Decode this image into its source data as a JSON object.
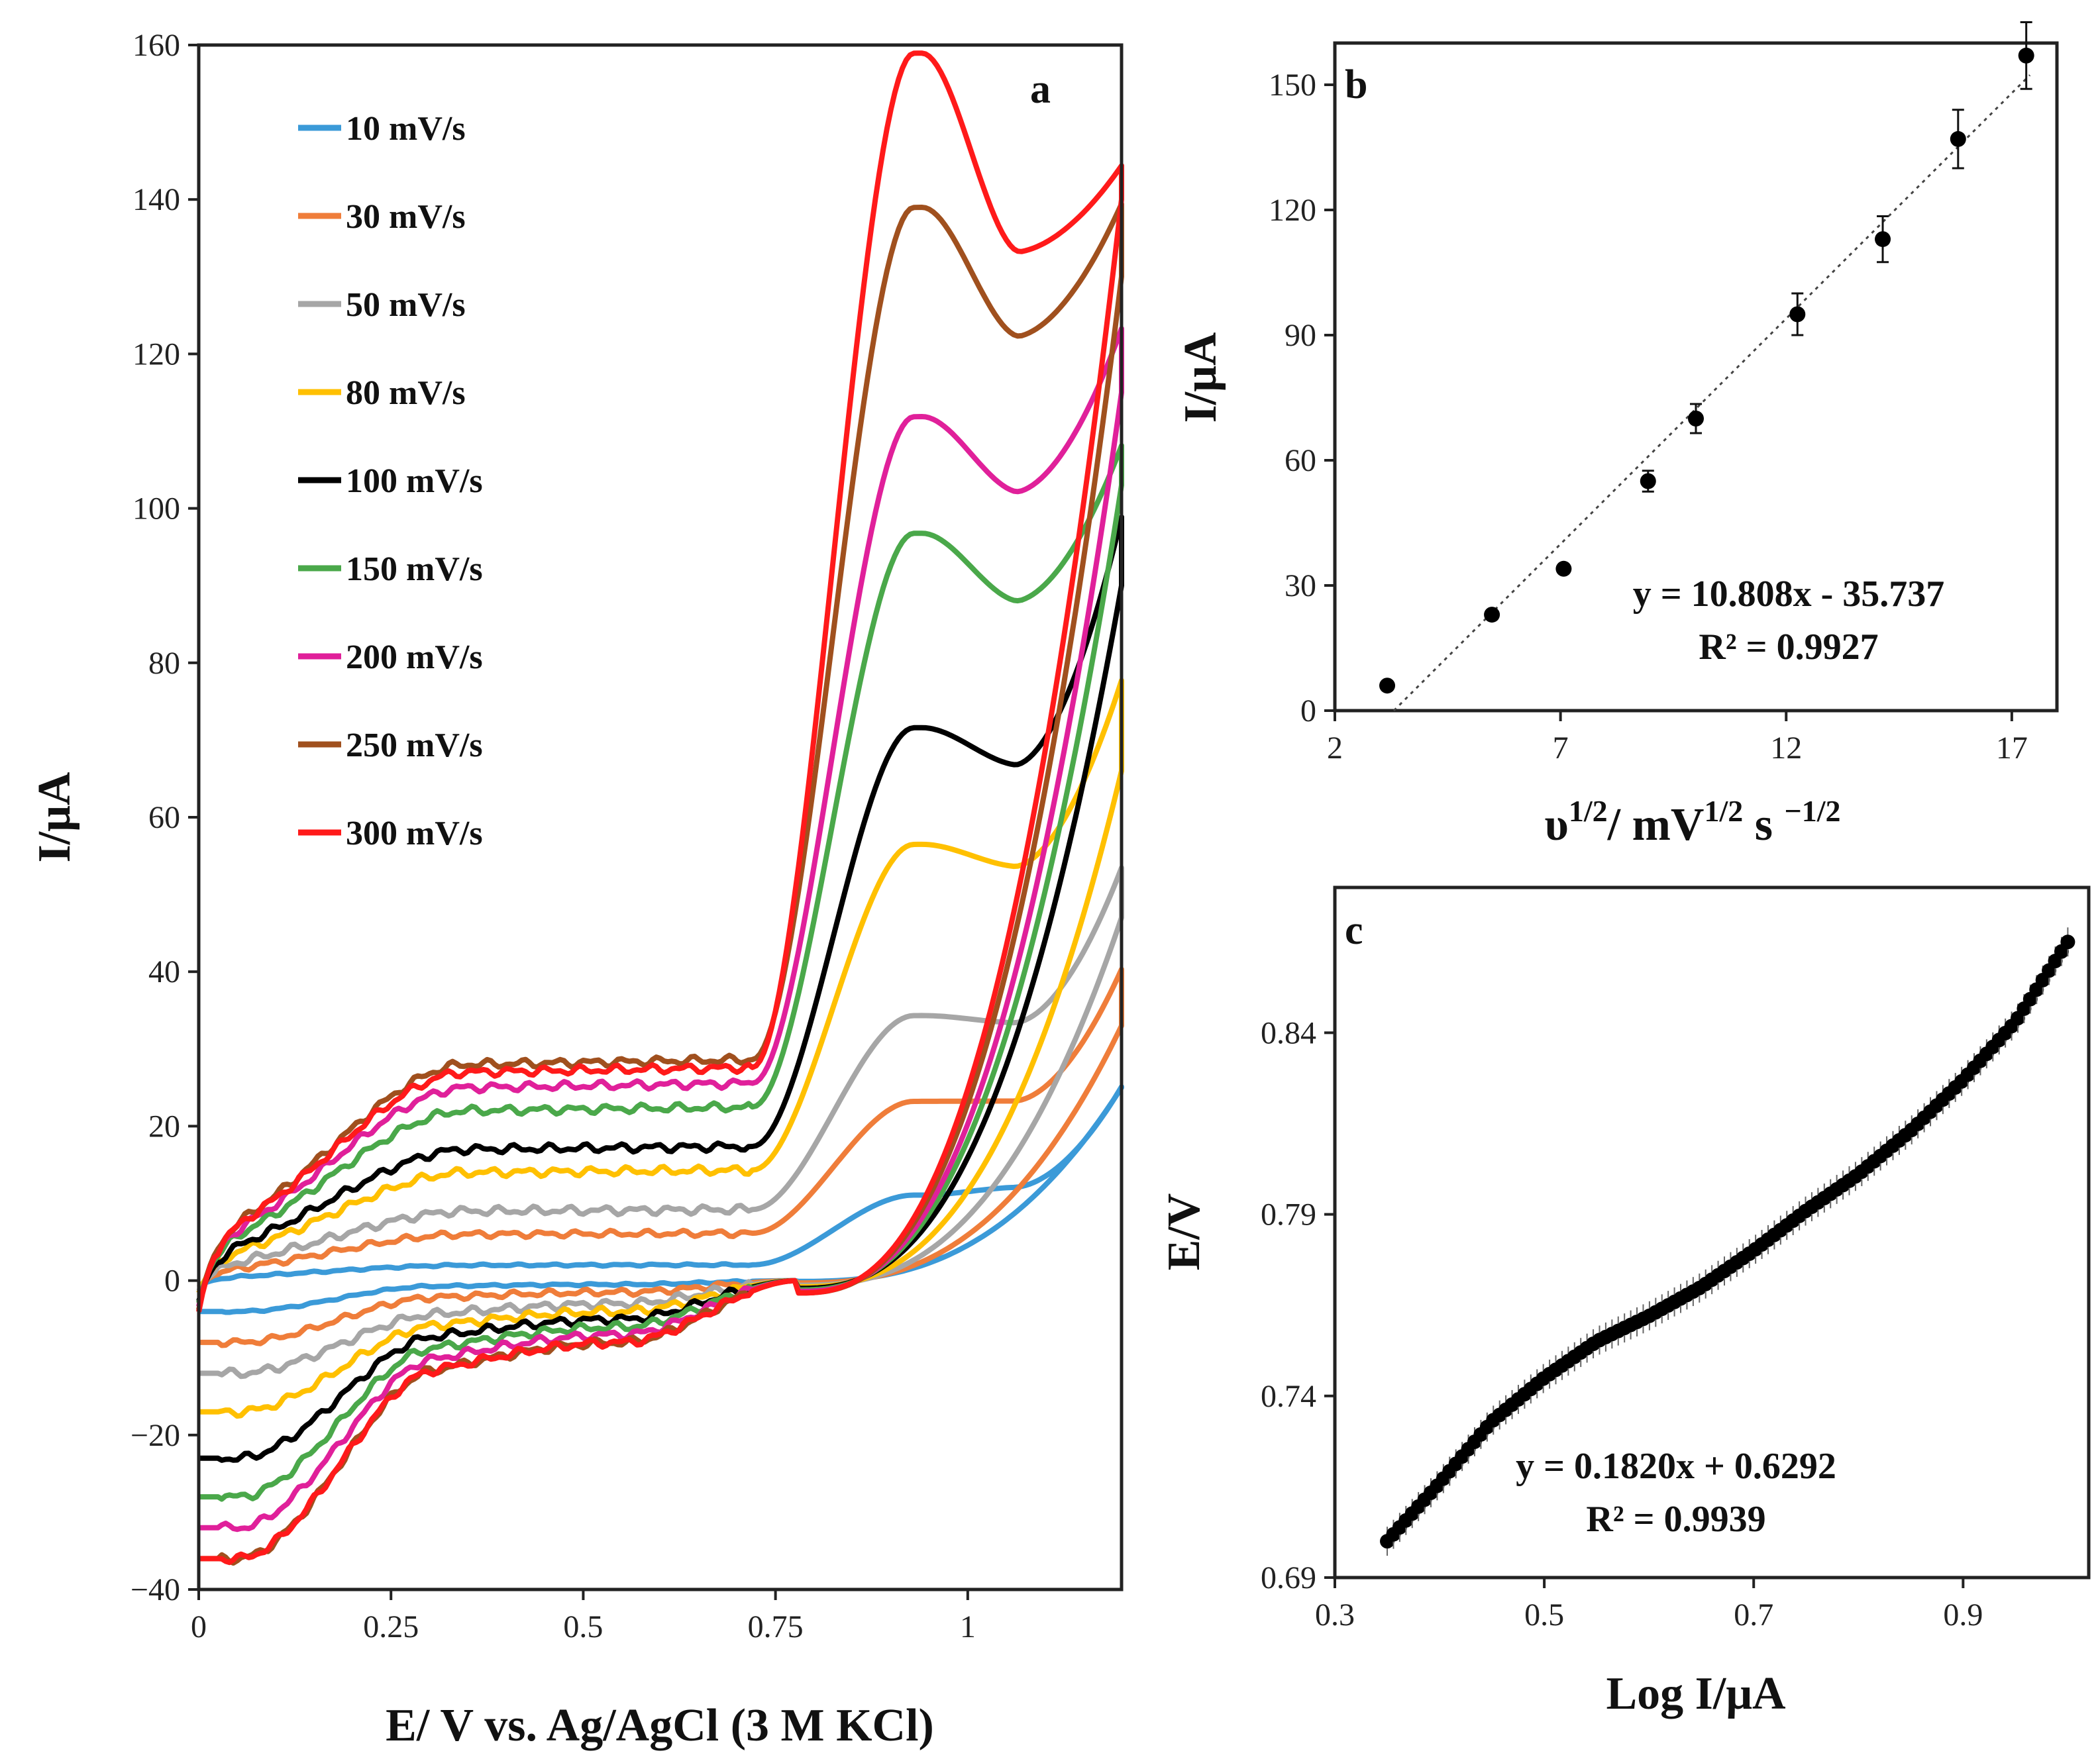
{
  "chart_data": [
    {
      "panel": "a",
      "type": "line",
      "title": "",
      "xlabel": "E/ V vs. Ag/AgCl (3 M KCl)",
      "ylabel": "I/μA",
      "xlim": [
        0,
        1.2
      ],
      "ylim": [
        -40,
        160
      ],
      "xticks": [
        0,
        0.25,
        0.5,
        0.75,
        1
      ],
      "xtick_labels": [
        "0",
        "0.25",
        "0.5",
        "0.75",
        "1"
      ],
      "yticks": [
        -40,
        -20,
        0,
        20,
        40,
        60,
        80,
        100,
        120,
        140,
        160
      ],
      "ytick_labels": [
        "−40",
        "−20",
        "0",
        "20",
        "40",
        "60",
        "80",
        "100",
        "120",
        "140",
        "160"
      ],
      "legend_position": "top-left",
      "series": [
        {
          "name": "10 mV/s",
          "color": "#3b9ad8",
          "plateau": 2,
          "peak": 11,
          "dip": 12,
          "end_anodic": 25,
          "end_cathodic": 25,
          "start": -4,
          "cath_plateau": -0.5
        },
        {
          "name": "30 mV/s",
          "color": "#ef7d3a",
          "plateau": 6,
          "peak": 23,
          "dip": 23,
          "end_anodic": 40,
          "end_cathodic": 33,
          "start": -8,
          "cath_plateau": -1.5
        },
        {
          "name": "50 mV/s",
          "color": "#a6a6a6",
          "plateau": 9,
          "peak": 34,
          "dip": 33,
          "end_anodic": 53,
          "end_cathodic": 47,
          "start": -12,
          "cath_plateau": -3
        },
        {
          "name": "80 mV/s",
          "color": "#ffc000",
          "plateau": 14,
          "peak": 56,
          "dip": 53,
          "end_anodic": 77,
          "end_cathodic": 66,
          "start": -17,
          "cath_plateau": -4
        },
        {
          "name": "100 mV/s",
          "color": "#000000",
          "plateau": 17,
          "peak": 71,
          "dip": 66,
          "end_anodic": 98,
          "end_cathodic": 90,
          "start": -23,
          "cath_plateau": -5
        },
        {
          "name": "150 mV/s",
          "color": "#4aa84a",
          "plateau": 22,
          "peak": 96,
          "dip": 87,
          "end_anodic": 107,
          "end_cathodic": 103,
          "start": -28,
          "cath_plateau": -6
        },
        {
          "name": "200 mV/s",
          "color": "#e0209a",
          "plateau": 25,
          "peak": 111,
          "dip": 101,
          "end_anodic": 122,
          "end_cathodic": 115,
          "start": -32,
          "cath_plateau": -7
        },
        {
          "name": "250 mV/s",
          "color": "#a0501e",
          "plateau": 28,
          "peak": 138,
          "dip": 121,
          "end_anodic": 138,
          "end_cathodic": 130,
          "start": -36,
          "cath_plateau": -8
        },
        {
          "name": "300 mV/s",
          "color": "#ff1a1a",
          "plateau": 27,
          "peak": 158,
          "dip": 132,
          "end_anodic": 143,
          "end_cathodic": 140,
          "start": -36,
          "cath_plateau": -8
        }
      ]
    },
    {
      "panel": "b",
      "type": "scatter",
      "title": "",
      "xlabel_parts": [
        "υ",
        "1/2",
        "/ mV",
        "1/2",
        " s ",
        "−1/2"
      ],
      "ylabel": "I/μA",
      "xlim": [
        2,
        18
      ],
      "ylim": [
        0,
        160
      ],
      "xticks": [
        2,
        7,
        12,
        17
      ],
      "xtick_labels": [
        "2",
        "7",
        "12",
        "17"
      ],
      "yticks": [
        0,
        30,
        60,
        90,
        120,
        150
      ],
      "ytick_labels": [
        "0",
        "30",
        "60",
        "90",
        "120",
        "150"
      ],
      "x": [
        3.16,
        5.48,
        7.07,
        8.94,
        10.0,
        12.25,
        14.14,
        15.81,
        17.32
      ],
      "y": [
        6,
        23,
        34,
        55,
        70,
        95,
        113,
        137,
        157
      ],
      "yerr": [
        0,
        0,
        0,
        2.5,
        3.5,
        5,
        5.5,
        7,
        8
      ],
      "fit": {
        "slope": 10.808,
        "intercept": -35.737
      },
      "equation": "y = 10.808x - 35.737",
      "r2": "R² = 0.9927"
    },
    {
      "panel": "c",
      "type": "scatter",
      "title": "",
      "xlabel": "Log I/μA",
      "ylabel": "E/V",
      "xlim": [
        0.3,
        1.02
      ],
      "ylim": [
        0.69,
        0.88
      ],
      "xticks": [
        0.3,
        0.5,
        0.7,
        0.9
      ],
      "xtick_labels": [
        "0.3",
        "0.5",
        "0.7",
        "0.9"
      ],
      "yticks": [
        0.69,
        0.74,
        0.79,
        0.84
      ],
      "ytick_labels": [
        "0.69",
        "0.74",
        "0.79",
        "0.84"
      ],
      "curve_x": [
        0.35,
        0.4,
        0.45,
        0.5,
        0.55,
        0.6,
        0.65,
        0.7,
        0.75,
        0.8,
        0.85,
        0.9,
        0.95,
        1.0
      ],
      "curve_y": [
        0.7,
        0.716,
        0.733,
        0.745,
        0.755,
        0.762,
        0.77,
        0.78,
        0.791,
        0.801,
        0.813,
        0.827,
        0.843,
        0.865
      ],
      "point_count": 110,
      "yerr": 0.004,
      "equation": "y = 0.1820x + 0.6292",
      "r2": "R² = 0.9939"
    }
  ]
}
